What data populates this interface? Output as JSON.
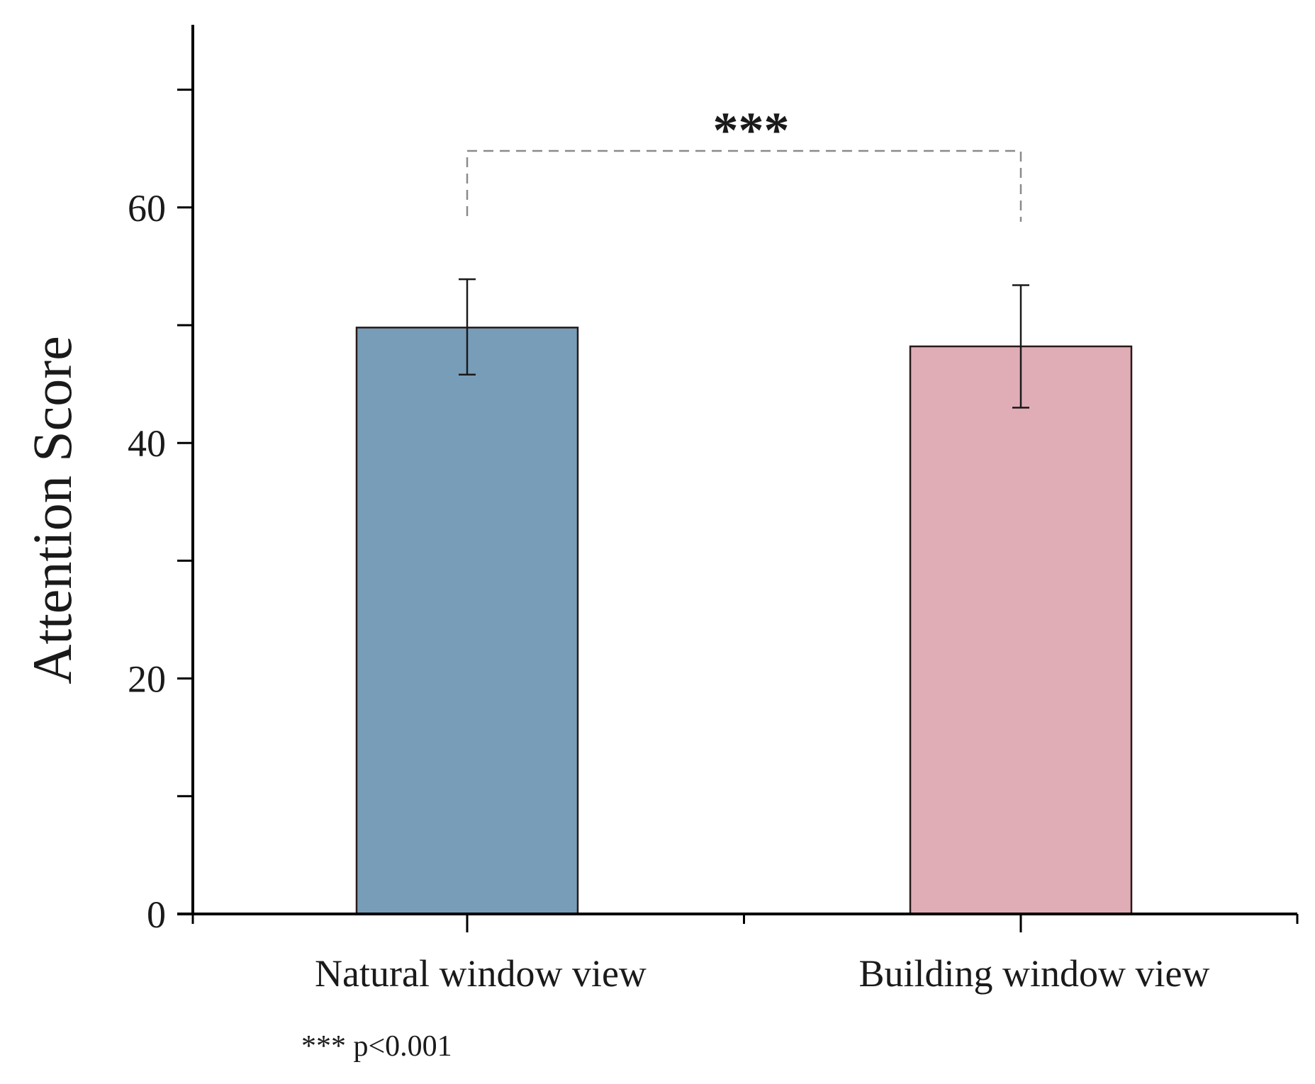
{
  "chart_data": {
    "type": "bar",
    "categories": [
      "Natural window view",
      "Building window view"
    ],
    "values": [
      49.8,
      48.2
    ],
    "error_bars": {
      "upper": [
        53.9,
        53.4
      ],
      "lower": [
        45.8,
        43.0
      ]
    },
    "colors": [
      "#789db8",
      "#e0adb7"
    ],
    "xlabel": "",
    "ylabel": "Attention Score",
    "ylim": [
      0,
      75
    ],
    "yticks": [
      0,
      10,
      20,
      30,
      40,
      50,
      60,
      70
    ],
    "ytick_labels": [
      "0",
      "",
      "20",
      "",
      "40",
      "",
      "60",
      ""
    ],
    "grid": false,
    "legend": "none",
    "significance": {
      "between": [
        0,
        1
      ],
      "label": "***",
      "level": 64.8
    },
    "note": "*** p<0.001"
  }
}
